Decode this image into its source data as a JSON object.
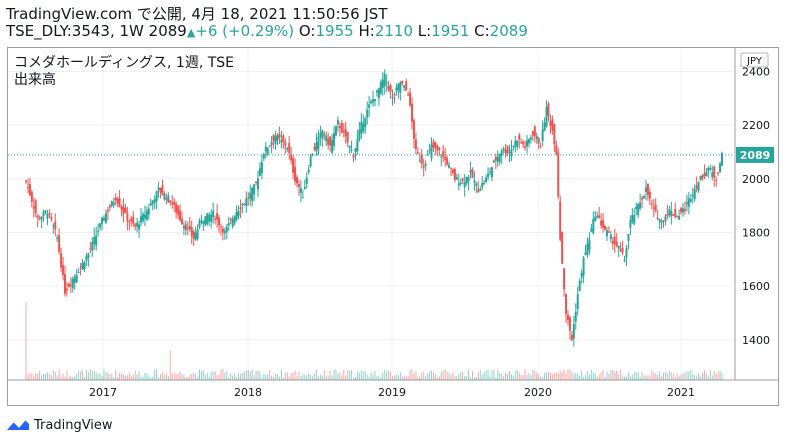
{
  "header": {
    "line1": "TradingView.com で公開, 4月 18, 2021 11:50:56 JST",
    "line2_prefix": "TSE_DLY:3543, 1W 2089",
    "change": "+6 (+0.29%)",
    "o_label": "O:",
    "o_value": "1955",
    "h_label": "H:",
    "h_value": "2110",
    "l_label": "L:",
    "l_value": "1951",
    "c_label": "C:",
    "c_value": "2089"
  },
  "pane": {
    "title": "コメダホールディングス, 1週, TSE",
    "volume_label": "出来高"
  },
  "footer": {
    "brand": "TradingView"
  },
  "colors": {
    "up": "#26a69a",
    "down": "#ef5350",
    "last_price": "#26a69a"
  },
  "chart_data": {
    "type": "candlestick",
    "title": "コメダホールディングス, 1週, TSE",
    "currency": "JPY",
    "y_ticks": [
      "2400",
      "2200",
      "2000",
      "1800",
      "1600",
      "1400"
    ],
    "ylim": [
      1250,
      2480
    ],
    "x_ticks": [
      "2017",
      "2018",
      "2019",
      "2020",
      "2021"
    ],
    "last_price": "2089",
    "legend_position": "top-left",
    "anchors": [
      [
        0,
        1990
      ],
      [
        6,
        1850
      ],
      [
        11,
        1880
      ],
      [
        16,
        1780
      ],
      [
        20,
        1580
      ],
      [
        26,
        1650
      ],
      [
        32,
        1720
      ],
      [
        40,
        1860
      ],
      [
        46,
        1930
      ],
      [
        52,
        1850
      ],
      [
        56,
        1820
      ],
      [
        62,
        1880
      ],
      [
        68,
        1960
      ],
      [
        74,
        1920
      ],
      [
        80,
        1840
      ],
      [
        86,
        1780
      ],
      [
        90,
        1850
      ],
      [
        96,
        1870
      ],
      [
        102,
        1800
      ],
      [
        108,
        1880
      ],
      [
        114,
        1930
      ],
      [
        118,
        1980
      ],
      [
        122,
        2100
      ],
      [
        128,
        2160
      ],
      [
        134,
        2120
      ],
      [
        138,
        2000
      ],
      [
        142,
        1940
      ],
      [
        146,
        2080
      ],
      [
        152,
        2180
      ],
      [
        156,
        2120
      ],
      [
        160,
        2210
      ],
      [
        164,
        2150
      ],
      [
        168,
        2090
      ],
      [
        172,
        2200
      ],
      [
        176,
        2270
      ],
      [
        180,
        2320
      ],
      [
        184,
        2380
      ],
      [
        188,
        2300
      ],
      [
        192,
        2360
      ],
      [
        196,
        2320
      ],
      [
        200,
        2100
      ],
      [
        204,
        2050
      ],
      [
        208,
        2120
      ],
      [
        212,
        2100
      ],
      [
        216,
        2060
      ],
      [
        220,
        2000
      ],
      [
        224,
        1990
      ],
      [
        228,
        2020
      ],
      [
        232,
        1960
      ],
      [
        236,
        2000
      ],
      [
        240,
        2060
      ],
      [
        244,
        2110
      ],
      [
        248,
        2100
      ],
      [
        252,
        2150
      ],
      [
        256,
        2120
      ],
      [
        260,
        2170
      ],
      [
        264,
        2130
      ],
      [
        267,
        2260
      ],
      [
        270,
        2180
      ],
      [
        272,
        2100
      ],
      [
        274,
        1780
      ],
      [
        277,
        1500
      ],
      [
        280,
        1400
      ],
      [
        283,
        1570
      ],
      [
        286,
        1700
      ],
      [
        289,
        1780
      ],
      [
        292,
        1870
      ],
      [
        296,
        1820
      ],
      [
        300,
        1780
      ],
      [
        304,
        1740
      ],
      [
        307,
        1700
      ],
      [
        310,
        1840
      ],
      [
        314,
        1900
      ],
      [
        318,
        1960
      ],
      [
        322,
        1880
      ],
      [
        326,
        1840
      ],
      [
        330,
        1880
      ],
      [
        334,
        1860
      ],
      [
        338,
        1890
      ],
      [
        342,
        1950
      ],
      [
        346,
        2000
      ],
      [
        350,
        2040
      ],
      [
        354,
        2000
      ],
      [
        357,
        2089
      ]
    ],
    "volume_spikes": [
      [
        0,
        1540
      ],
      [
        74,
        1360
      ]
    ],
    "volume_baseline": [
      1260,
      1290
    ]
  }
}
